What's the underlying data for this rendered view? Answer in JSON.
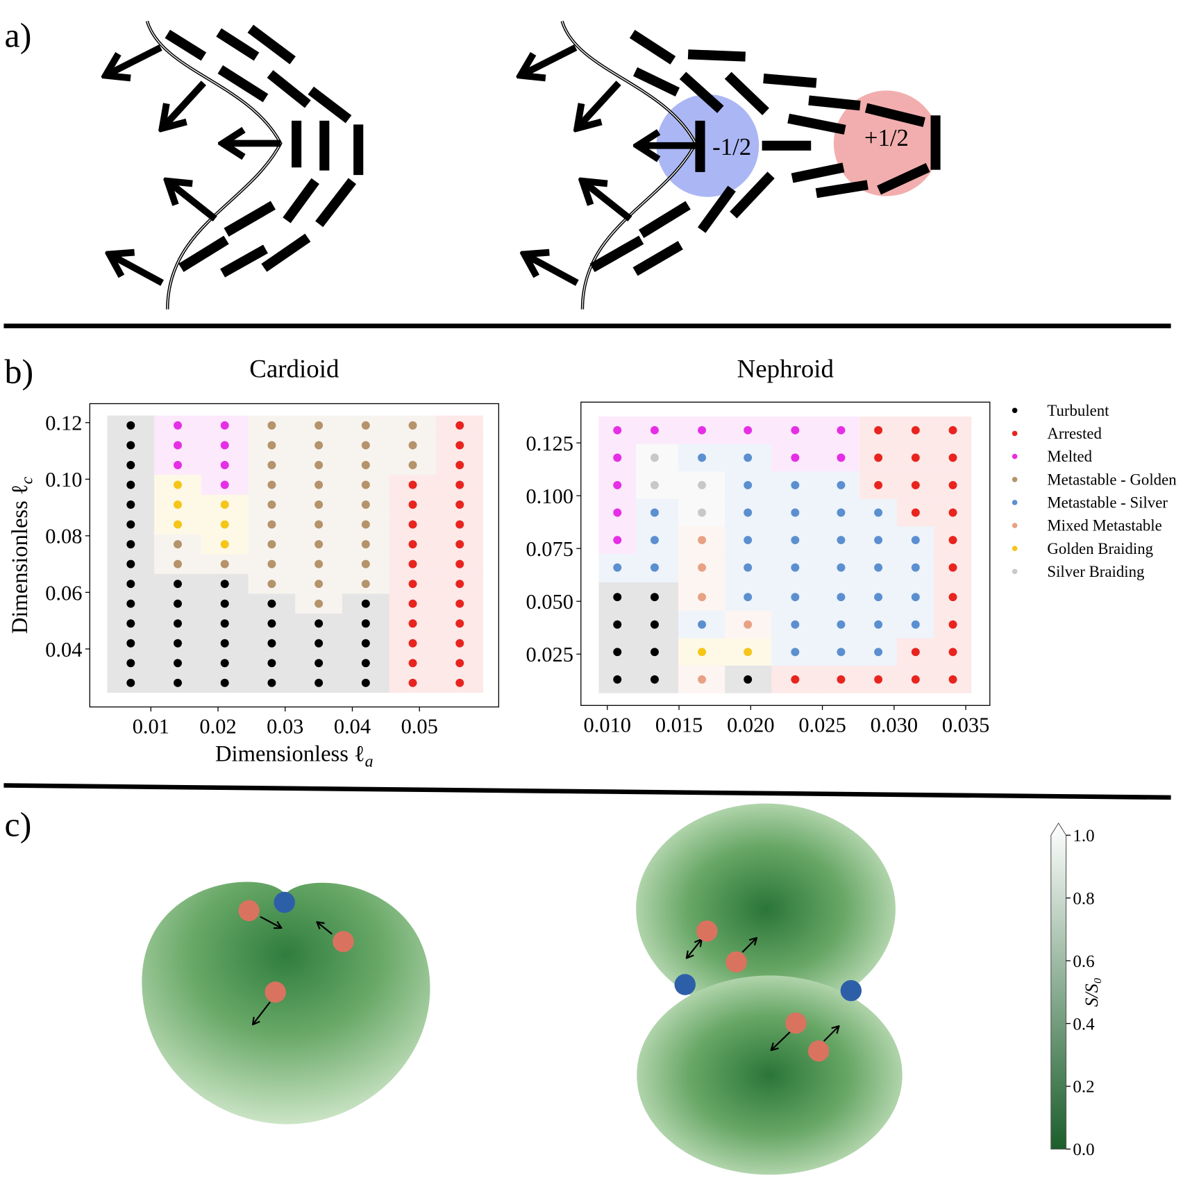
{
  "panels": {
    "a": "a)",
    "b": "b)",
    "c": "c)"
  },
  "defects": {
    "minus": "-1/2",
    "plus": "+1/2"
  },
  "chart_data": [
    {
      "type": "scatter",
      "title": "Cardioid",
      "xlabel": "Dimensionless ℓ",
      "xlabel_subscript": "a",
      "ylabel": "Dimensionless ℓ",
      "ylabel_subscript": "c",
      "xlim": [
        0.0009,
        0.0618
      ],
      "ylim": [
        0.0195,
        0.1267
      ],
      "xticks": [
        0.01,
        0.02,
        0.03,
        0.04,
        0.05
      ],
      "yticks": [
        0.04,
        0.06,
        0.08,
        {
          "value": 0.1,
          "label": "0.10"
        },
        0.12
      ],
      "series": [
        {
          "color": "#000000",
          "x": [
            0.007,
            0.007,
            0.007,
            0.007,
            0.007,
            0.007,
            0.007,
            0.007,
            0.007,
            0.007,
            0.007,
            0.007,
            0.007,
            0.007,
            0.014,
            0.014,
            0.014,
            0.014,
            0.014,
            0.014,
            0.021,
            0.021,
            0.021,
            0.021,
            0.021,
            0.021,
            0.028,
            0.028,
            0.028,
            0.028,
            0.028,
            0.035,
            0.035,
            0.035,
            0.035,
            0.042,
            0.042,
            0.042,
            0.042,
            0.042
          ],
          "y": [
            0.119,
            0.112,
            0.105,
            0.098,
            0.091,
            0.084,
            0.077,
            0.07,
            0.063,
            0.056,
            0.049,
            0.042,
            0.035,
            0.028,
            0.063,
            0.056,
            0.049,
            0.042,
            0.035,
            0.028,
            0.063,
            0.056,
            0.049,
            0.042,
            0.035,
            0.028,
            0.056,
            0.049,
            0.042,
            0.035,
            0.028,
            0.049,
            0.042,
            0.035,
            0.028,
            0.056,
            0.049,
            0.042,
            0.035,
            0.028
          ]
        },
        {
          "color": "#e8241f",
          "x": [
            0.049,
            0.049,
            0.049,
            0.049,
            0.049,
            0.049,
            0.049,
            0.049,
            0.049,
            0.049,
            0.049,
            0.056,
            0.056,
            0.056,
            0.056,
            0.056,
            0.056,
            0.056,
            0.056,
            0.056,
            0.056,
            0.056,
            0.056,
            0.056,
            0.056
          ],
          "y": [
            0.098,
            0.091,
            0.084,
            0.077,
            0.07,
            0.063,
            0.056,
            0.049,
            0.042,
            0.035,
            0.028,
            0.119,
            0.112,
            0.105,
            0.098,
            0.091,
            0.084,
            0.077,
            0.07,
            0.063,
            0.056,
            0.049,
            0.042,
            0.035,
            0.028
          ]
        },
        {
          "color": "#e62ee6",
          "x": [
            0.014,
            0.014,
            0.014,
            0.021,
            0.021,
            0.021,
            0.021
          ],
          "y": [
            0.119,
            0.112,
            0.105,
            0.119,
            0.112,
            0.105,
            0.098
          ]
        },
        {
          "color": "#b5936b",
          "x": [
            0.014,
            0.014,
            0.021,
            0.028,
            0.028,
            0.028,
            0.028,
            0.028,
            0.028,
            0.028,
            0.028,
            0.028,
            0.035,
            0.035,
            0.035,
            0.035,
            0.035,
            0.035,
            0.035,
            0.035,
            0.035,
            0.035,
            0.042,
            0.042,
            0.042,
            0.042,
            0.042,
            0.042,
            0.042,
            0.042,
            0.042,
            0.049,
            0.049,
            0.049
          ],
          "y": [
            0.077,
            0.07,
            0.07,
            0.119,
            0.112,
            0.105,
            0.098,
            0.091,
            0.084,
            0.077,
            0.07,
            0.063,
            0.119,
            0.112,
            0.105,
            0.098,
            0.091,
            0.084,
            0.077,
            0.07,
            0.063,
            0.056,
            0.119,
            0.112,
            0.105,
            0.098,
            0.091,
            0.084,
            0.077,
            0.07,
            0.063,
            0.119,
            0.112,
            0.105
          ]
        },
        {
          "color": "#f5c518",
          "x": [
            0.014,
            0.014,
            0.014,
            0.021,
            0.021,
            0.021
          ],
          "y": [
            0.098,
            0.091,
            0.084,
            0.091,
            0.084,
            0.077
          ]
        }
      ]
    },
    {
      "type": "scatter",
      "title": "Nephroid",
      "legend": "right",
      "xlim": [
        0.00816,
        0.03668
      ],
      "ylim": [
        0.0007,
        0.1443
      ],
      "xticks": [
        {
          "value": 0.01,
          "label": "0.010"
        },
        0.015,
        {
          "value": 0.02,
          "label": "0.020"
        },
        0.025,
        {
          "value": 0.03,
          "label": "0.030"
        },
        0.035
      ],
      "yticks": [
        0.025,
        {
          "value": 0.05,
          "label": "0.050"
        },
        0.075,
        {
          "value": 0.1,
          "label": "0.100"
        },
        0.125
      ],
      "series": [
        {
          "name": "Turbulent",
          "color": "#000000",
          "x": [
            0.0107,
            0.0107,
            0.0107,
            0.0107,
            0.0133,
            0.0133,
            0.0133,
            0.0133,
            0.0198
          ],
          "y": [
            0.052,
            0.039,
            0.026,
            0.013,
            0.052,
            0.039,
            0.026,
            0.013,
            0.013
          ]
        },
        {
          "name": "Arrested",
          "color": "#e8241f",
          "x": [
            0.0231,
            0.0263,
            0.0289,
            0.0289,
            0.0289,
            0.0289,
            0.0315,
            0.0315,
            0.0315,
            0.0315,
            0.0315,
            0.0315,
            0.0341,
            0.0341,
            0.0341,
            0.0341,
            0.0341,
            0.0341,
            0.0341,
            0.0341,
            0.0341,
            0.0341
          ],
          "y": [
            0.013,
            0.013,
            0.131,
            0.118,
            0.105,
            0.013,
            0.131,
            0.118,
            0.105,
            0.092,
            0.026,
            0.013,
            0.131,
            0.118,
            0.105,
            0.092,
            0.079,
            0.066,
            0.052,
            0.039,
            0.026,
            0.013
          ]
        },
        {
          "name": "Melted",
          "color": "#e62ee6",
          "x": [
            0.0107,
            0.0107,
            0.0107,
            0.0107,
            0.0107,
            0.0133,
            0.0166,
            0.0198,
            0.0231,
            0.0231,
            0.0263,
            0.0263
          ],
          "y": [
            0.131,
            0.118,
            0.105,
            0.092,
            0.079,
            0.131,
            0.131,
            0.131,
            0.131,
            0.118,
            0.131,
            0.118
          ]
        },
        {
          "name": "Metastable - Golden",
          "color": "#b5936b",
          "x": [],
          "y": []
        },
        {
          "name": "Metastable - Silver",
          "color": "#5b8fd0",
          "x": [
            0.0107,
            0.0133,
            0.0133,
            0.0133,
            0.0166,
            0.0166,
            0.0198,
            0.0198,
            0.0198,
            0.0198,
            0.0198,
            0.0198,
            0.0231,
            0.0231,
            0.0231,
            0.0231,
            0.0231,
            0.0231,
            0.0231,
            0.0263,
            0.0263,
            0.0263,
            0.0263,
            0.0263,
            0.0263,
            0.0263,
            0.0289,
            0.0289,
            0.0289,
            0.0289,
            0.0289,
            0.0289,
            0.0315,
            0.0315,
            0.0315,
            0.0315
          ],
          "y": [
            0.066,
            0.092,
            0.079,
            0.066,
            0.118,
            0.039,
            0.118,
            0.105,
            0.092,
            0.079,
            0.066,
            0.052,
            0.105,
            0.092,
            0.079,
            0.066,
            0.052,
            0.039,
            0.026,
            0.105,
            0.092,
            0.079,
            0.066,
            0.052,
            0.039,
            0.026,
            0.092,
            0.079,
            0.066,
            0.052,
            0.039,
            0.026,
            0.079,
            0.066,
            0.052,
            0.039
          ]
        },
        {
          "name": "Mixed Metastable",
          "color": "#e8a183",
          "x": [
            0.0166,
            0.0166,
            0.0166,
            0.0166,
            0.0198
          ],
          "y": [
            0.079,
            0.066,
            0.052,
            0.013,
            0.039
          ]
        },
        {
          "name": "Golden Braiding",
          "color": "#f5c518",
          "x": [
            0.0166,
            0.0198
          ],
          "y": [
            0.026,
            0.026
          ]
        },
        {
          "name": "Silver Braiding",
          "color": "#c8c8c8",
          "x": [
            0.0133,
            0.0133,
            0.0166,
            0.0166
          ],
          "y": [
            0.118,
            0.105,
            0.105,
            0.092
          ]
        }
      ]
    },
    {
      "type": "colorbar",
      "label": "S/S₀",
      "colors": [
        "#1b5e2b",
        "#ffffff"
      ],
      "ylim": [
        0,
        1
      ],
      "yticks": [
        {
          "value": 0,
          "label": "0.0"
        },
        0.2,
        0.4,
        0.6,
        0.8,
        {
          "value": 1,
          "label": "1.0"
        }
      ]
    }
  ]
}
